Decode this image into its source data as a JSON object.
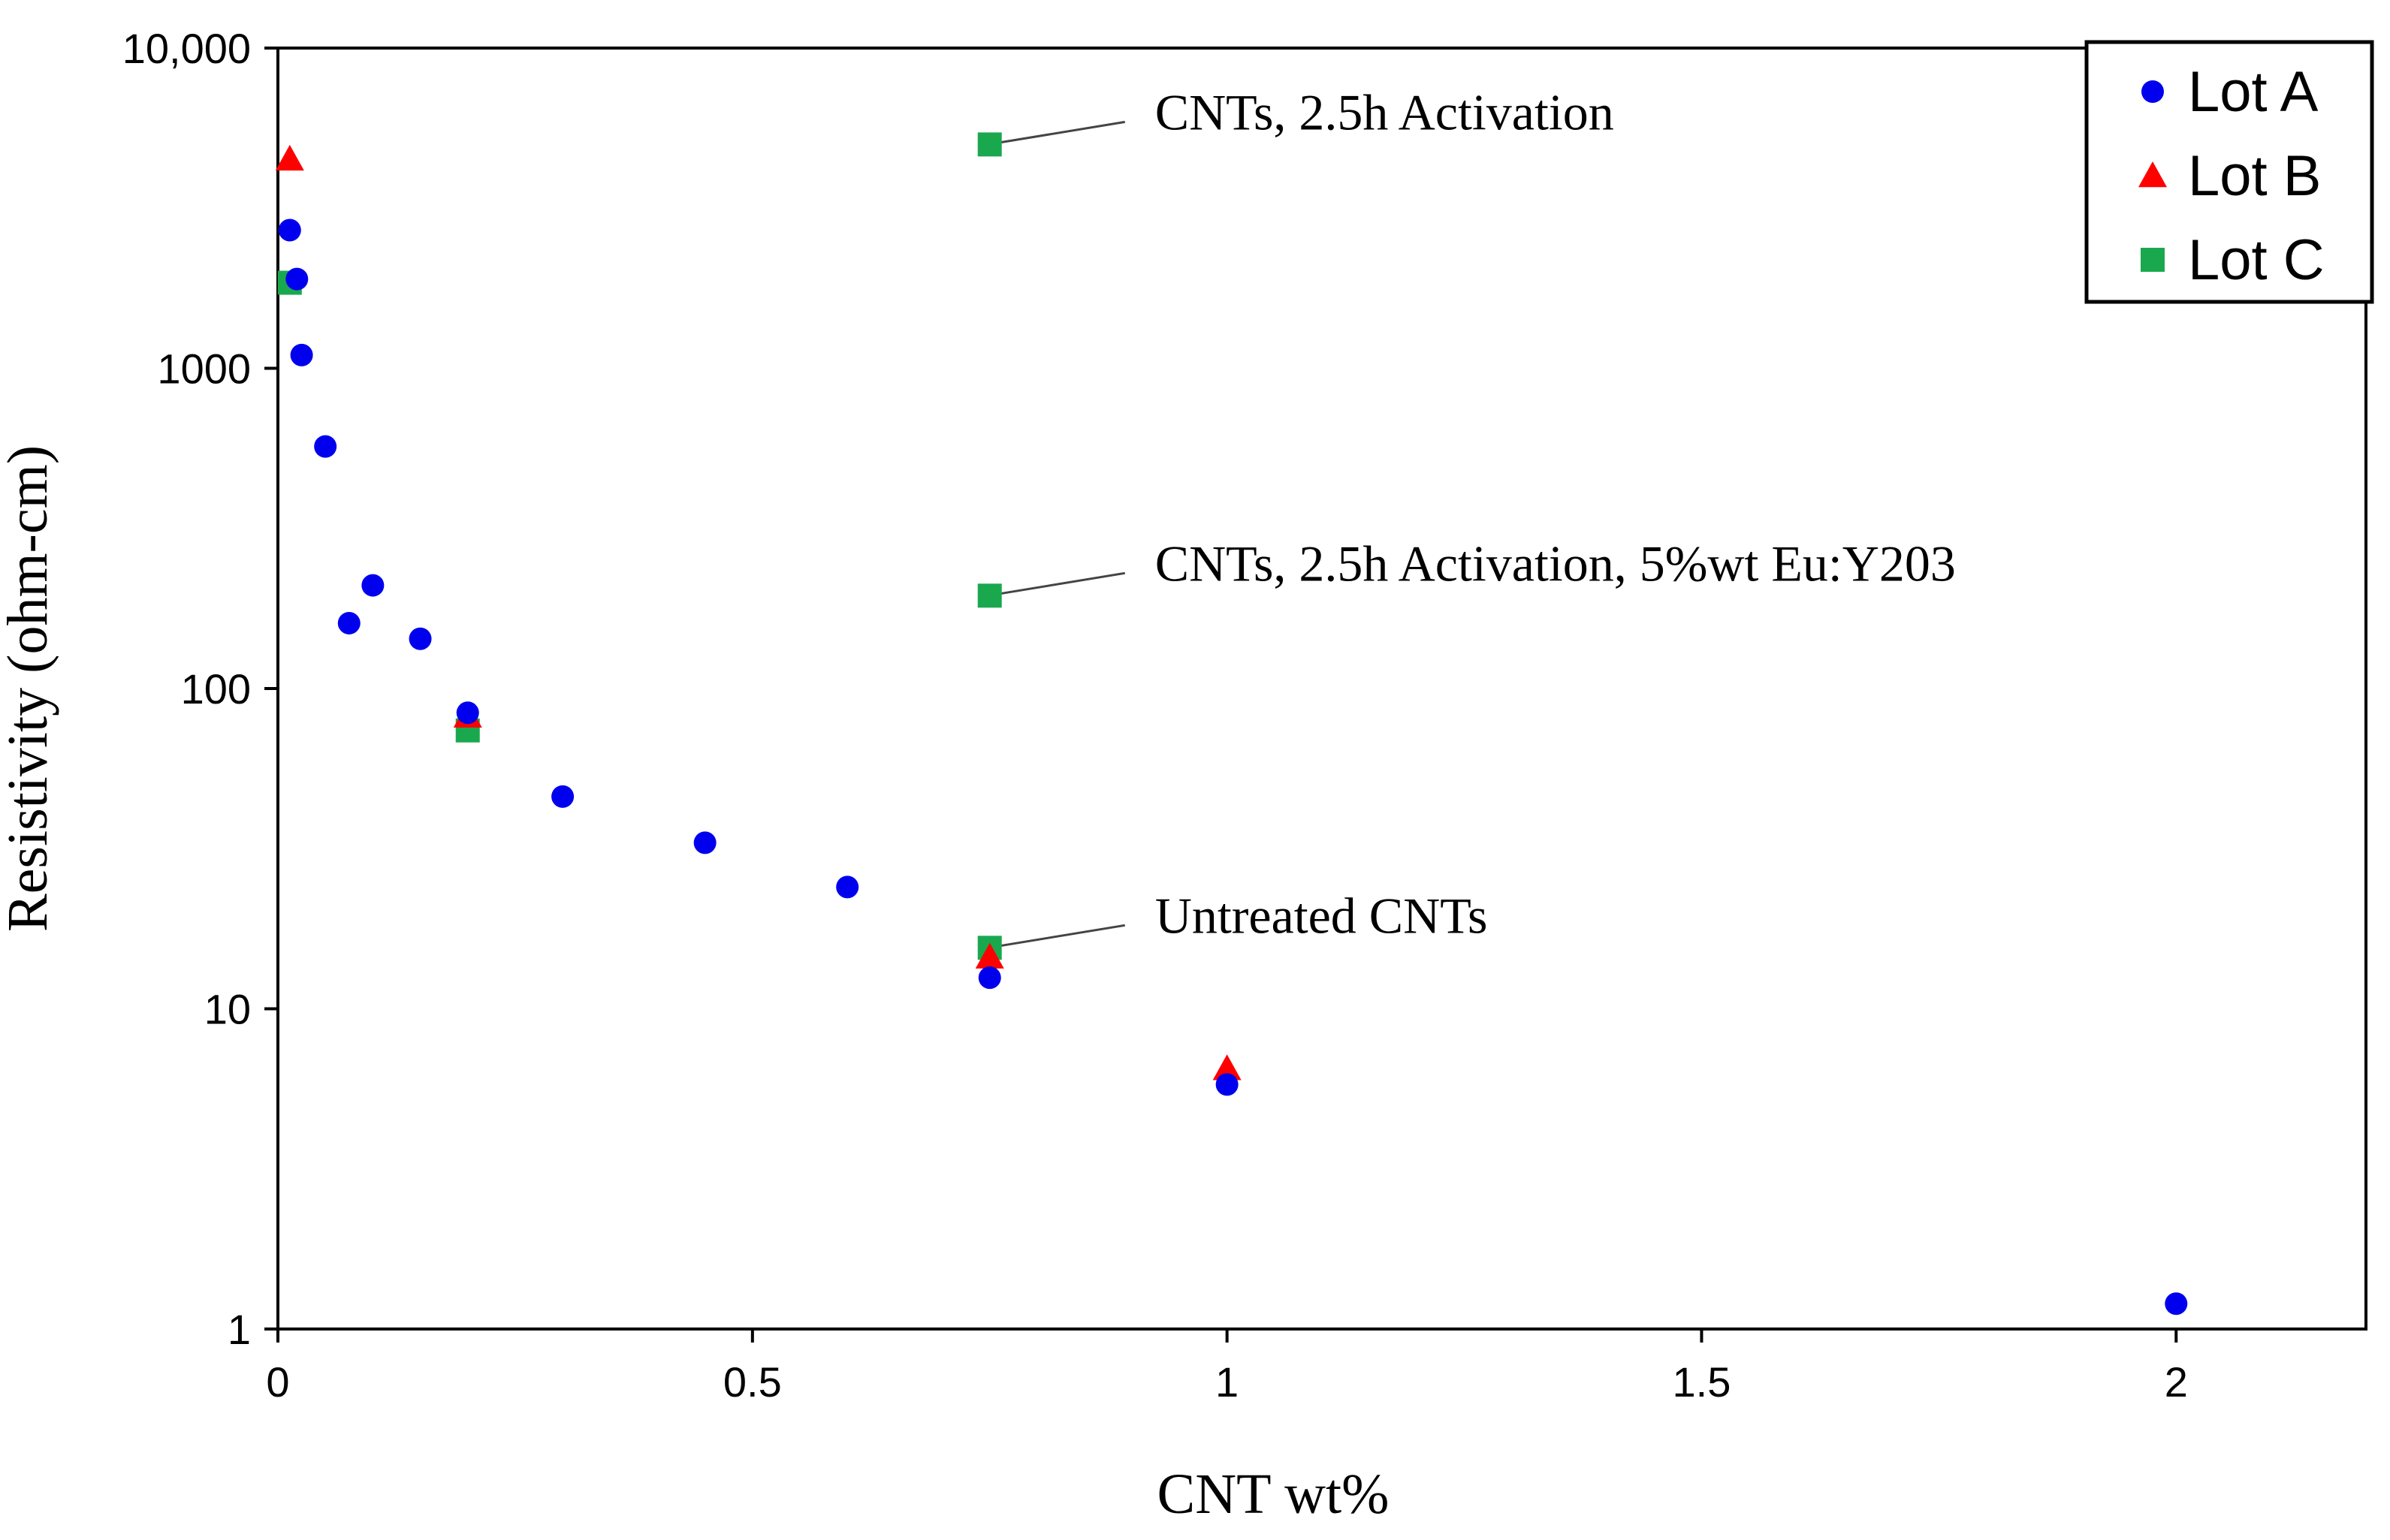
{
  "chart_data": {
    "type": "scatter",
    "title": "",
    "xlabel": "CNT wt%",
    "ylabel": "Resistivity (ohm-cm)",
    "xlim": [
      0,
      2.2
    ],
    "ylim": [
      1,
      10000
    ],
    "yscale": "log",
    "grid": false,
    "legend_position": "top-right",
    "x_ticks": [
      0,
      0.5,
      1,
      1.5,
      2
    ],
    "x_tick_labels": [
      "0",
      "0.5",
      "1",
      "1.5",
      "2"
    ],
    "y_ticks": [
      1,
      10,
      100,
      1000,
      10000
    ],
    "y_tick_labels": [
      "1",
      "10",
      "100",
      "1000",
      "10,000"
    ],
    "series": [
      {
        "name": "Lot A",
        "marker": "circle",
        "color": "#0000ee",
        "points": [
          {
            "x": 0.0125,
            "y": 2700
          },
          {
            "x": 0.02,
            "y": 1900
          },
          {
            "x": 0.025,
            "y": 1100
          },
          {
            "x": 0.05,
            "y": 570
          },
          {
            "x": 0.075,
            "y": 160
          },
          {
            "x": 0.1,
            "y": 210
          },
          {
            "x": 0.15,
            "y": 143
          },
          {
            "x": 0.2,
            "y": 84
          },
          {
            "x": 0.3,
            "y": 46
          },
          {
            "x": 0.45,
            "y": 33
          },
          {
            "x": 0.6,
            "y": 24
          },
          {
            "x": 0.75,
            "y": 12.5
          },
          {
            "x": 1.0,
            "y": 5.8
          },
          {
            "x": 2.0,
            "y": 1.2
          }
        ]
      },
      {
        "name": "Lot B",
        "marker": "triangle",
        "color": "#ff0000",
        "points": [
          {
            "x": 0.0125,
            "y": 4500
          },
          {
            "x": 0.2,
            "y": 82
          },
          {
            "x": 0.75,
            "y": 14.5
          },
          {
            "x": 1.0,
            "y": 6.5
          }
        ]
      },
      {
        "name": "Lot C",
        "marker": "square",
        "color": "#1aa84f",
        "points": [
          {
            "x": 0.0125,
            "y": 1850
          },
          {
            "x": 0.2,
            "y": 74
          },
          {
            "x": 0.75,
            "y": 5000
          },
          {
            "x": 0.75,
            "y": 195
          },
          {
            "x": 0.75,
            "y": 15.5
          }
        ]
      }
    ],
    "annotations": [
      {
        "text": "CNTs, 2.5h Activation",
        "point": {
          "x": 0.75,
          "y": 5000
        }
      },
      {
        "text": "CNTs, 2.5h Activation,  5%wt Eu:Y203",
        "point": {
          "x": 0.75,
          "y": 195
        }
      },
      {
        "text": "Untreated CNTs",
        "point": {
          "x": 0.75,
          "y": 15.5
        }
      }
    ]
  }
}
